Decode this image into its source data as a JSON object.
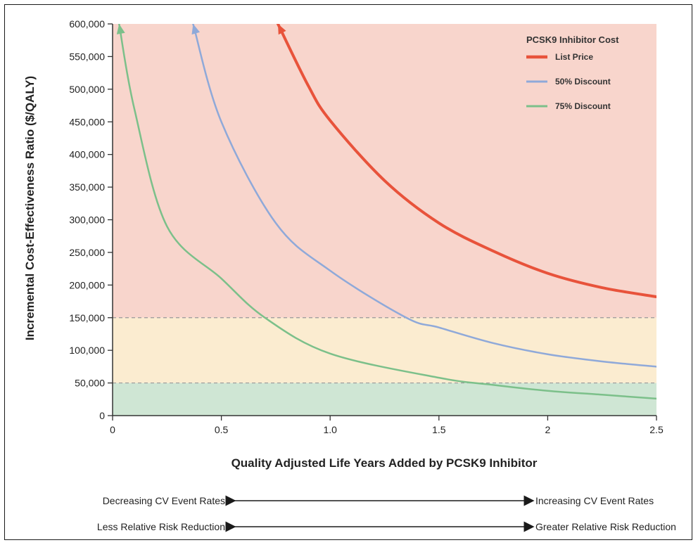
{
  "chart_data": {
    "type": "line",
    "xlabel": "Quality Adjusted Life Years Added by PCSK9 Inhibitor",
    "ylabel": "Incremental Cost-Effectiveness Ratio ($/QALY)",
    "xlim": [
      0,
      2.5
    ],
    "ylim": [
      0,
      600000
    ],
    "x_ticks": [
      0,
      0.5,
      1.0,
      1.5,
      2,
      2.5
    ],
    "x_tick_labels": [
      "0",
      "0.5",
      "1.0",
      "1.5",
      "2",
      "2.5"
    ],
    "y_ticks": [
      0,
      50000,
      100000,
      150000,
      200000,
      250000,
      300000,
      350000,
      400000,
      450000,
      500000,
      550000,
      600000
    ],
    "y_tick_labels": [
      "0",
      "50,000",
      "100,000",
      "150,000",
      "200,000",
      "250,000",
      "300,000",
      "350,000",
      "400,000",
      "450,000",
      "500,000",
      "550,000",
      "600,000"
    ],
    "legend": {
      "title": "PCSK9 Inhibitor Cost",
      "placement": "top-right"
    },
    "bands": [
      {
        "from": 0,
        "to": 50000,
        "color": "#cfe6d4"
      },
      {
        "from": 50000,
        "to": 150000,
        "color": "#fbecd0"
      },
      {
        "from": 150000,
        "to": 600000,
        "color": "#f8d5cc"
      }
    ],
    "thresholds": [
      50000,
      150000
    ],
    "series": [
      {
        "name": "List Price",
        "color": "#e8533b",
        "stroke_width": 4,
        "arrow": true,
        "points": [
          [
            0.76,
            600000
          ],
          [
            0.9,
            505000
          ],
          [
            1.0,
            452000
          ],
          [
            1.25,
            360000
          ],
          [
            1.5,
            295000
          ],
          [
            1.75,
            252000
          ],
          [
            2.0,
            218000
          ],
          [
            2.25,
            196000
          ],
          [
            2.5,
            182000
          ]
        ]
      },
      {
        "name": "50% Discount",
        "color": "#8fa9d9",
        "stroke_width": 2.5,
        "arrow": true,
        "points": [
          [
            0.37,
            600000
          ],
          [
            0.5,
            450000
          ],
          [
            0.75,
            295000
          ],
          [
            1.0,
            222000
          ],
          [
            1.35,
            150000
          ],
          [
            1.5,
            135000
          ],
          [
            1.75,
            111000
          ],
          [
            2.0,
            94000
          ],
          [
            2.25,
            83000
          ],
          [
            2.5,
            75000
          ]
        ]
      },
      {
        "name": "75% Discount",
        "color": "#7cc08a",
        "stroke_width": 2.5,
        "arrow": true,
        "points": [
          [
            0.03,
            600000
          ],
          [
            0.1,
            470000
          ],
          [
            0.25,
            290000
          ],
          [
            0.5,
            210000
          ],
          [
            0.7,
            150000
          ],
          [
            1.0,
            95000
          ],
          [
            1.5,
            58000
          ],
          [
            1.75,
            47000
          ],
          [
            2.0,
            38000
          ],
          [
            2.25,
            32000
          ],
          [
            2.5,
            26000
          ]
        ]
      }
    ]
  },
  "annotations": {
    "row1_left": "Decreasing CV Event Rates",
    "row1_right": "Increasing CV Event Rates",
    "row2_left": "Less Relative Risk Reduction",
    "row2_right": "Greater Relative Risk Reduction"
  },
  "colors": {
    "axis": "#333333",
    "threshold_line": "#999999",
    "arrow": "#1a1a1a"
  }
}
